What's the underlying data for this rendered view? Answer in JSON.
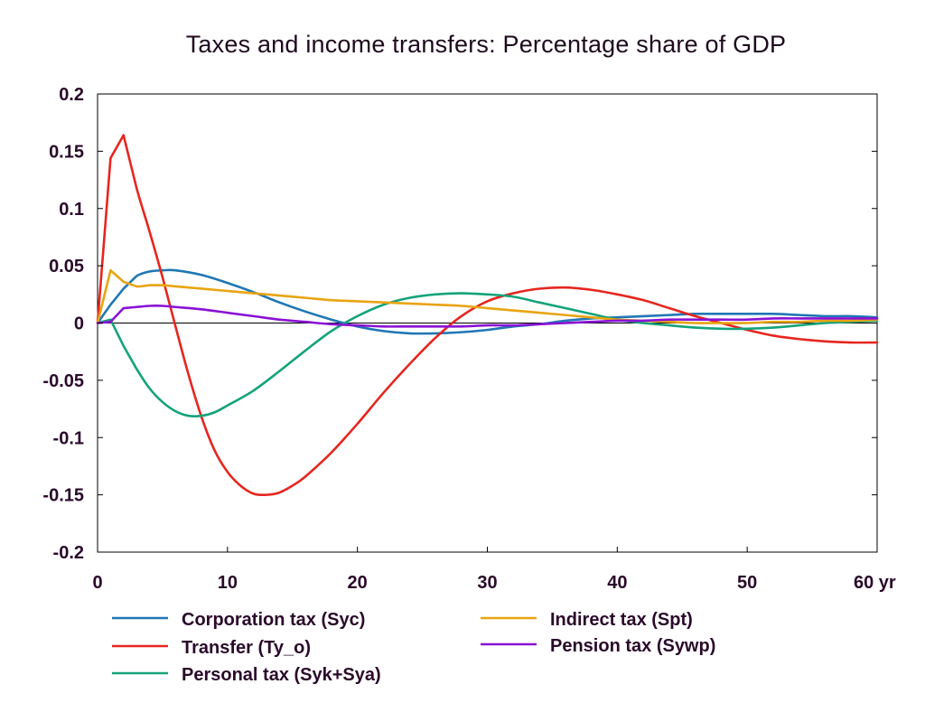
{
  "chart_data": {
    "type": "line",
    "title": "Taxes and income transfers: Percentage share of GDP",
    "xlabel": "",
    "ylabel": "",
    "xlim": [
      0,
      60
    ],
    "ylim": [
      -0.2,
      0.2
    ],
    "x_ticks": [
      "0",
      "10",
      "20",
      "30",
      "40",
      "50",
      "60 yr"
    ],
    "y_ticks": [
      "0.2",
      "0.15",
      "0.1",
      "0.05",
      "0",
      "-0.05",
      "-0.1",
      "-0.15",
      "-0.2"
    ],
    "grid": false,
    "legend_position": "bottom",
    "series": [
      {
        "name": "Corporation tax (Syc)",
        "color": "#1f77b4",
        "x": [
          0,
          1,
          2,
          3,
          4,
          5,
          6,
          8,
          10,
          12,
          14,
          16,
          18,
          20,
          22,
          24,
          26,
          28,
          30,
          32,
          34,
          36,
          38,
          40,
          42,
          44,
          46,
          48,
          50,
          52,
          54,
          56,
          58,
          60
        ],
        "y": [
          0,
          0.016,
          0.03,
          0.041,
          0.045,
          0.046,
          0.046,
          0.042,
          0.035,
          0.027,
          0.018,
          0.01,
          0.003,
          -0.003,
          -0.007,
          -0.009,
          -0.009,
          -0.008,
          -0.006,
          -0.003,
          -0.001,
          0.002,
          0.004,
          0.005,
          0.006,
          0.007,
          0.008,
          0.008,
          0.008,
          0.008,
          0.007,
          0.006,
          0.006,
          0.005
        ]
      },
      {
        "name": "Transfer (Ty_o)",
        "color": "#e6261f",
        "x": [
          0,
          1,
          2,
          3,
          4,
          5,
          6,
          7,
          8,
          9,
          10,
          11,
          12,
          13,
          14,
          15,
          16,
          18,
          20,
          22,
          24,
          26,
          28,
          30,
          32,
          34,
          36,
          38,
          40,
          42,
          44,
          46,
          48,
          50,
          52,
          54,
          56,
          58,
          60
        ],
        "y": [
          0,
          0.144,
          0.164,
          0.118,
          0.08,
          0.04,
          -0.003,
          -0.045,
          -0.082,
          -0.111,
          -0.13,
          -0.142,
          -0.149,
          -0.15,
          -0.148,
          -0.142,
          -0.134,
          -0.113,
          -0.088,
          -0.061,
          -0.036,
          -0.013,
          0.006,
          0.019,
          0.026,
          0.03,
          0.031,
          0.029,
          0.025,
          0.02,
          0.013,
          0.006,
          0.0,
          -0.006,
          -0.011,
          -0.014,
          -0.016,
          -0.017,
          -0.017
        ]
      },
      {
        "name": "Personal tax (Syk+Sya)",
        "color": "#14a37a",
        "x": [
          0,
          1,
          2,
          3,
          4,
          5,
          6,
          7,
          8,
          9,
          10,
          12,
          14,
          16,
          18,
          20,
          22,
          24,
          26,
          28,
          30,
          32,
          34,
          36,
          38,
          40,
          42,
          44,
          46,
          48,
          50,
          52,
          54,
          56,
          58,
          60
        ],
        "y": [
          0,
          0.003,
          -0.02,
          -0.04,
          -0.057,
          -0.069,
          -0.077,
          -0.081,
          -0.081,
          -0.078,
          -0.072,
          -0.059,
          -0.042,
          -0.024,
          -0.007,
          0.006,
          0.016,
          0.022,
          0.025,
          0.026,
          0.025,
          0.023,
          0.018,
          0.013,
          0.008,
          0.003,
          0.0,
          -0.002,
          -0.004,
          -0.005,
          -0.005,
          -0.004,
          -0.002,
          0.0,
          0.001,
          0.002
        ]
      },
      {
        "name": "Indirect tax (Spt)",
        "color": "#e8a412",
        "x": [
          0,
          1,
          2,
          3,
          4,
          5,
          6,
          8,
          10,
          12,
          14,
          16,
          18,
          20,
          22,
          24,
          26,
          28,
          30,
          32,
          34,
          36,
          38,
          40,
          42,
          44,
          46,
          48,
          50,
          52,
          54,
          56,
          58,
          60
        ],
        "y": [
          0,
          0.046,
          0.036,
          0.032,
          0.033,
          0.033,
          0.032,
          0.03,
          0.028,
          0.026,
          0.024,
          0.022,
          0.02,
          0.019,
          0.018,
          0.017,
          0.016,
          0.015,
          0.013,
          0.011,
          0.009,
          0.007,
          0.005,
          0.003,
          0.002,
          0.001,
          0.0,
          0.0,
          0.0,
          0.001,
          0.001,
          0.002,
          0.002,
          0.003
        ]
      },
      {
        "name": "Pension tax (Sywp)",
        "color": "#8a12d4",
        "x": [
          0,
          1,
          2,
          3,
          4,
          5,
          6,
          8,
          10,
          12,
          14,
          16,
          18,
          20,
          22,
          24,
          26,
          28,
          30,
          32,
          34,
          36,
          38,
          40,
          42,
          44,
          46,
          48,
          50,
          52,
          54,
          56,
          58,
          60
        ],
        "y": [
          0,
          0.001,
          0.013,
          0.014,
          0.015,
          0.015,
          0.014,
          0.012,
          0.009,
          0.006,
          0.003,
          0.001,
          -0.001,
          -0.002,
          -0.003,
          -0.003,
          -0.003,
          -0.003,
          -0.002,
          -0.002,
          -0.001,
          0.0,
          0.001,
          0.002,
          0.002,
          0.003,
          0.003,
          0.003,
          0.003,
          0.004,
          0.004,
          0.004,
          0.004,
          0.004
        ]
      }
    ]
  }
}
